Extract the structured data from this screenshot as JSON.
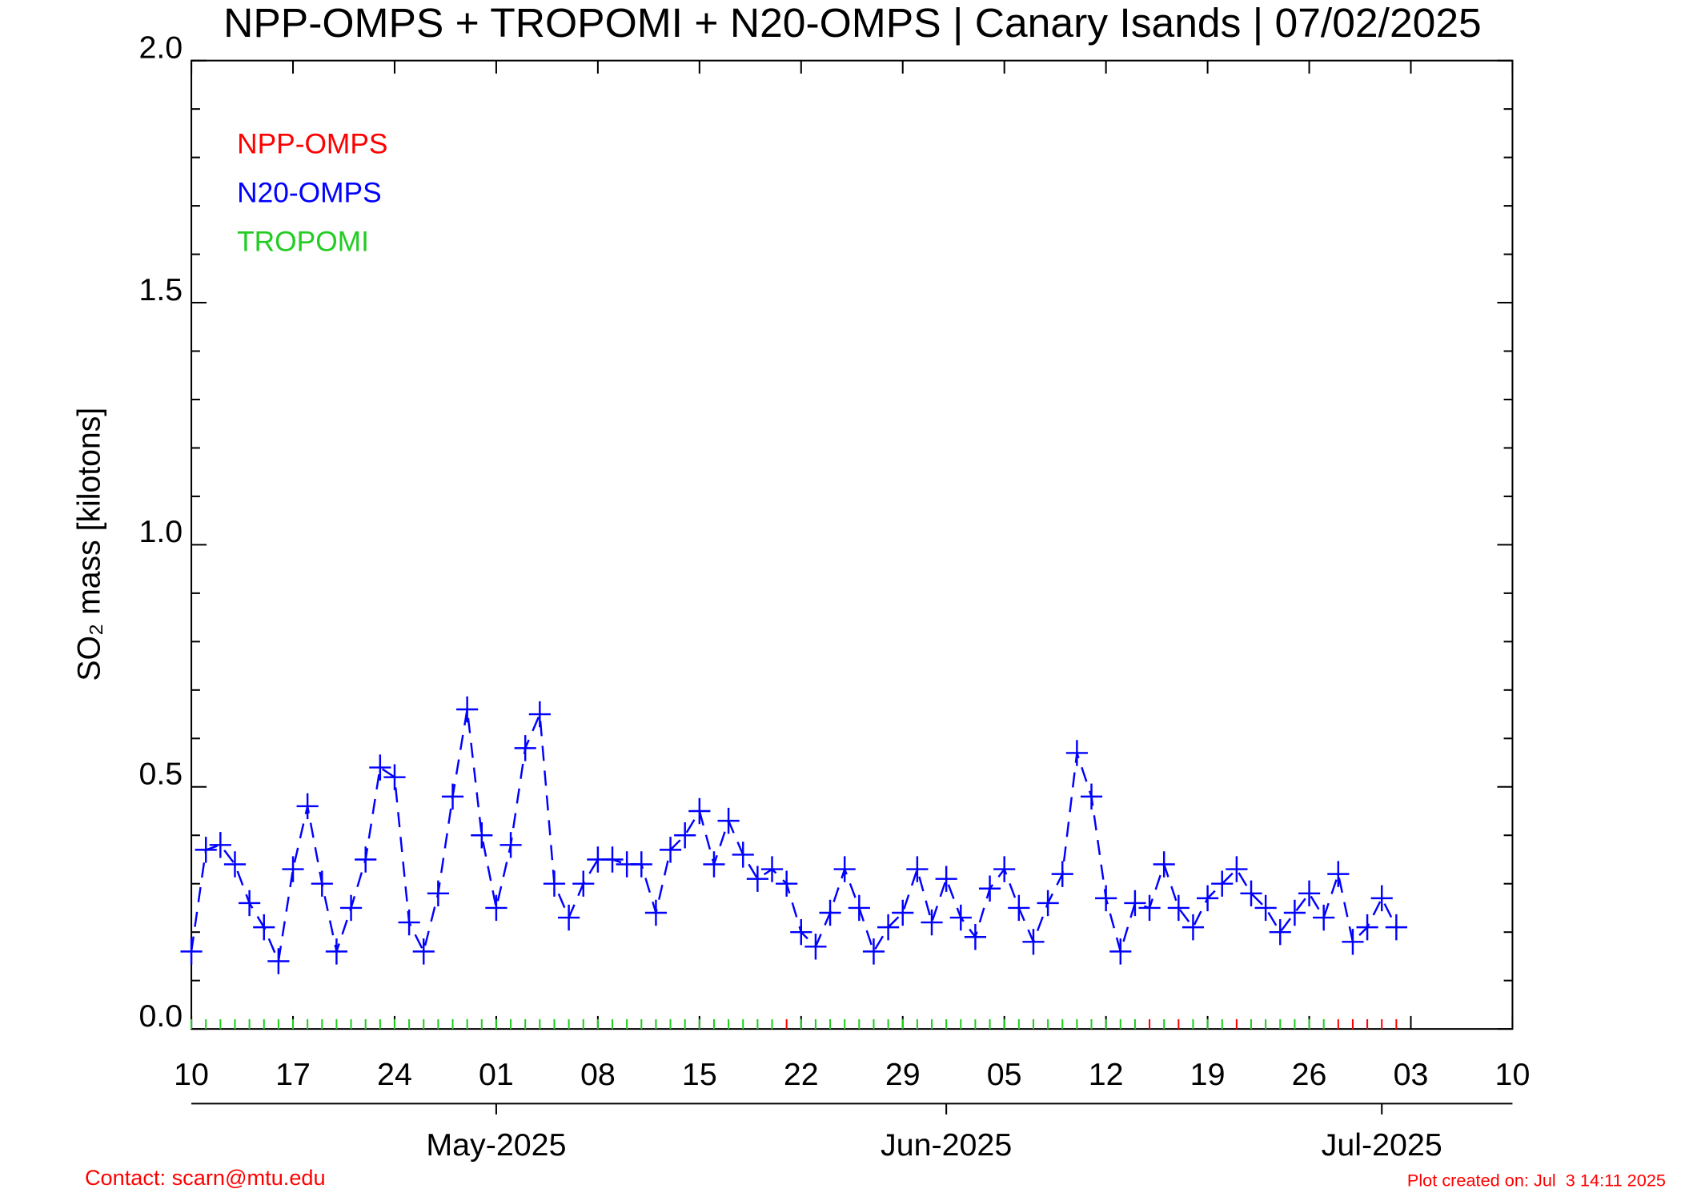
{
  "chart_data": {
    "type": "line",
    "title": "NPP-OMPS + TROPOMI + N20-OMPS | Canary Isands | 07/02/2025",
    "y_label": "SO₂ mass [kilotons]",
    "x": [
      "2025-04-10",
      "2025-04-11",
      "2025-04-12",
      "2025-04-13",
      "2025-04-14",
      "2025-04-15",
      "2025-04-16",
      "2025-04-17",
      "2025-04-18",
      "2025-04-19",
      "2025-04-20",
      "2025-04-21",
      "2025-04-22",
      "2025-04-23",
      "2025-04-24",
      "2025-04-25",
      "2025-04-26",
      "2025-04-27",
      "2025-04-28",
      "2025-04-29",
      "2025-04-30",
      "2025-05-01",
      "2025-05-02",
      "2025-05-03",
      "2025-05-04",
      "2025-05-05",
      "2025-05-06",
      "2025-05-07",
      "2025-05-08",
      "2025-05-09",
      "2025-05-10",
      "2025-05-11",
      "2025-05-12",
      "2025-05-13",
      "2025-05-14",
      "2025-05-15",
      "2025-05-16",
      "2025-05-17",
      "2025-05-18",
      "2025-05-19",
      "2025-05-20",
      "2025-05-21",
      "2025-05-22",
      "2025-05-23",
      "2025-05-24",
      "2025-05-25",
      "2025-05-26",
      "2025-05-27",
      "2025-05-28",
      "2025-05-29",
      "2025-05-30",
      "2025-05-31",
      "2025-06-01",
      "2025-06-02",
      "2025-06-03",
      "2025-06-04",
      "2025-06-05",
      "2025-06-06",
      "2025-06-07",
      "2025-06-08",
      "2025-06-09",
      "2025-06-10",
      "2025-06-11",
      "2025-06-12",
      "2025-06-13",
      "2025-06-14",
      "2025-06-15",
      "2025-06-16",
      "2025-06-17",
      "2025-06-18",
      "2025-06-19",
      "2025-06-20",
      "2025-06-21",
      "2025-06-22",
      "2025-06-23",
      "2025-06-24",
      "2025-06-25",
      "2025-06-26",
      "2025-06-27",
      "2025-06-28",
      "2025-06-29",
      "2025-06-30",
      "2025-07-01",
      "2025-07-02"
    ],
    "series": [
      {
        "name": "NPP-OMPS",
        "color": "#ff0000"
      },
      {
        "name": "N20-OMPS",
        "color": "#0000ff",
        "values": [
          0.16,
          0.37,
          0.38,
          0.34,
          0.26,
          0.21,
          0.14,
          0.33,
          0.46,
          0.3,
          0.16,
          0.25,
          0.35,
          0.54,
          0.52,
          0.22,
          0.16,
          0.28,
          0.48,
          0.66,
          0.4,
          0.25,
          0.38,
          0.58,
          0.65,
          0.3,
          0.23,
          0.3,
          0.35,
          0.35,
          0.34,
          0.34,
          0.24,
          0.37,
          0.4,
          0.45,
          0.34,
          0.43,
          0.36,
          0.31,
          0.33,
          0.3,
          0.2,
          0.17,
          0.24,
          0.33,
          0.25,
          0.16,
          0.21,
          0.24,
          0.33,
          0.22,
          0.31,
          0.23,
          0.19,
          0.29,
          0.33,
          0.25,
          0.18,
          0.26,
          0.32,
          0.57,
          0.48,
          0.27,
          0.16,
          0.26,
          0.25,
          0.34,
          0.25,
          0.21,
          0.27,
          0.3,
          0.33,
          0.28,
          0.25,
          0.2,
          0.24,
          0.28,
          0.23,
          0.32,
          0.18,
          0.21,
          0.27,
          0.21
        ]
      },
      {
        "name": "TROPOMI",
        "color": "#22cc22"
      }
    ],
    "day_tick_colors": [
      "#22cc22",
      "#22cc22",
      "#22cc22",
      "#22cc22",
      "#22cc22",
      "#22cc22",
      "#22cc22",
      "#22cc22",
      "#22cc22",
      "#22cc22",
      "#22cc22",
      "#22cc22",
      "#22cc22",
      "#22cc22",
      "#22cc22",
      "#22cc22",
      "#22cc22",
      "#22cc22",
      "#22cc22",
      "#22cc22",
      "#22cc22",
      "#22cc22",
      "#22cc22",
      "#22cc22",
      "#22cc22",
      "#22cc22",
      "#22cc22",
      "#22cc22",
      "#22cc22",
      "#22cc22",
      "#22cc22",
      "#22cc22",
      "#22cc22",
      "#22cc22",
      "#22cc22",
      "#22cc22",
      "#22cc22",
      "#22cc22",
      "#22cc22",
      "#22cc22",
      "#22cc22",
      "#ff0000",
      "#22cc22",
      "#22cc22",
      "#22cc22",
      "#22cc22",
      "#22cc22",
      "#22cc22",
      "#22cc22",
      "#22cc22",
      "#22cc22",
      "#22cc22",
      "#22cc22",
      "#22cc22",
      "#22cc22",
      "#22cc22",
      "#22cc22",
      "#22cc22",
      "#22cc22",
      "#22cc22",
      "#22cc22",
      "#22cc22",
      "#22cc22",
      "#22cc22",
      "#22cc22",
      "#22cc22",
      "#ff0000",
      "#22cc22",
      "#ff0000",
      "#22cc22",
      "#22cc22",
      "#22cc22",
      "#ff0000",
      "#22cc22",
      "#22cc22",
      "#22cc22",
      "#22cc22",
      "#22cc22",
      "#22cc22",
      "#ff0000",
      "#ff0000",
      "#ff0000",
      "#ff0000",
      "#ff0000"
    ],
    "xlim": [
      "2025-04-10",
      "2025-07-10"
    ],
    "xticks": [
      {
        "value": "2025-04-10",
        "label": "10"
      },
      {
        "value": "2025-04-17",
        "label": "17"
      },
      {
        "value": "2025-04-24",
        "label": "24"
      },
      {
        "value": "2025-05-01",
        "label": "01"
      },
      {
        "value": "2025-05-08",
        "label": "08"
      },
      {
        "value": "2025-05-15",
        "label": "15"
      },
      {
        "value": "2025-05-22",
        "label": "22"
      },
      {
        "value": "2025-05-29",
        "label": "29"
      },
      {
        "value": "2025-06-05",
        "label": "05"
      },
      {
        "value": "2025-06-12",
        "label": "12"
      },
      {
        "value": "2025-06-19",
        "label": "19"
      },
      {
        "value": "2025-06-26",
        "label": "26"
      },
      {
        "value": "2025-07-03",
        "label": "03"
      },
      {
        "value": "2025-07-10",
        "label": "10"
      }
    ],
    "month_ticks": [
      {
        "value": "2025-05-01",
        "label": "May-2025"
      },
      {
        "value": "2025-06-01",
        "label": "Jun-2025"
      },
      {
        "value": "2025-07-01",
        "label": "Jul-2025"
      }
    ],
    "ylim": [
      0,
      2
    ],
    "yticks": [
      {
        "value": 0,
        "label": "0.0"
      },
      0.5,
      {
        "value": 1,
        "label": "1.0"
      },
      1.5,
      {
        "value": 2,
        "label": "2.0"
      }
    ],
    "yminorticks": [
      0.1,
      0.2,
      0.3,
      0.4,
      0.6,
      0.7,
      0.8,
      0.9,
      1.1,
      1.2,
      1.3,
      1.4,
      1.6,
      1.7,
      1.8,
      1.9
    ],
    "contact": "Contact: scarn@mtu.edu",
    "created": "Plot created on: Jul  3 14:11 2025"
  }
}
